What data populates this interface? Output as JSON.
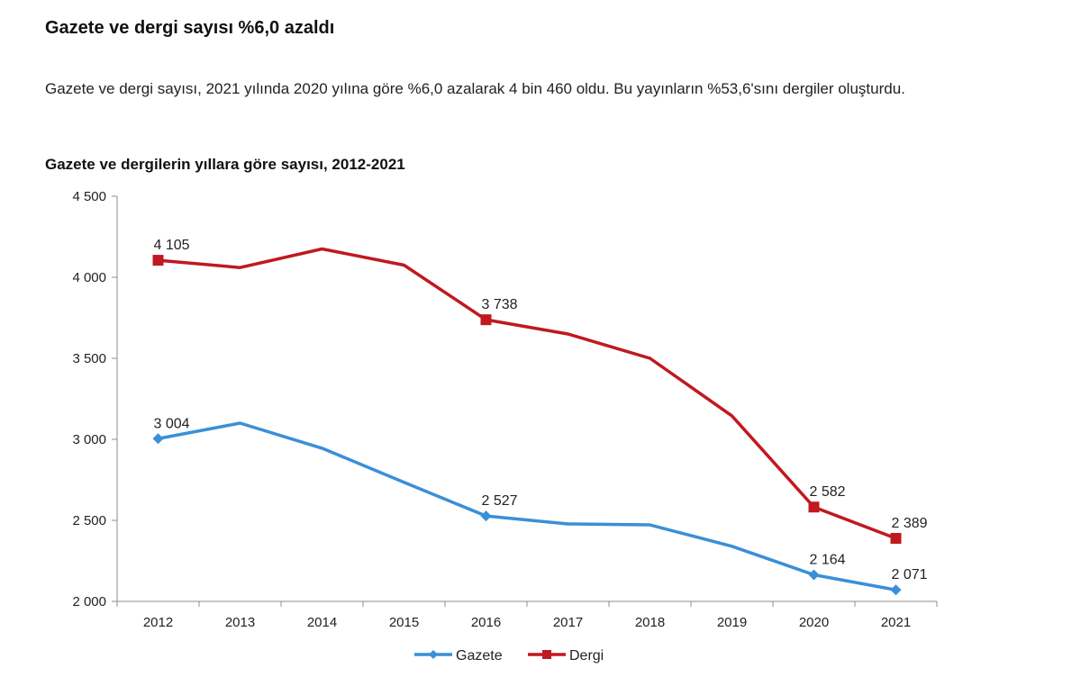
{
  "article": {
    "headline": "Gazete ve dergi sayısı %6,0 azaldı",
    "paragraph": "Gazete ve dergi sayısı, 2021 yılında 2020 yılına göre %6,0 azalarak 4 bin 460 oldu. Bu yayınların %53,6'sını dergiler oluşturdu."
  },
  "chart_data": {
    "type": "line",
    "title": "Gazete ve dergilerin yıllara göre sayısı, 2012-2021",
    "xlabel": "",
    "ylabel": "",
    "categories": [
      "2012",
      "2013",
      "2014",
      "2015",
      "2016",
      "2017",
      "2018",
      "2019",
      "2020",
      "2021"
    ],
    "ylim": [
      2000,
      4500
    ],
    "yticks": [
      2000,
      2500,
      3000,
      3500,
      4000,
      4500
    ],
    "ytick_labels": [
      "2 000",
      "2 500",
      "3 000",
      "3 500",
      "4 000",
      "4 500"
    ],
    "grid": false,
    "legend_position": "bottom-center",
    "series": [
      {
        "name": "Gazete",
        "color": "#3A8FD8",
        "marker": "diamond",
        "values": [
          3004,
          3100,
          2945,
          2735,
          2527,
          2478,
          2472,
          2340,
          2164,
          2071
        ],
        "labels": [
          {
            "index": 0,
            "text": "3 004"
          },
          {
            "index": 4,
            "text": "2 527"
          },
          {
            "index": 8,
            "text": "2 164"
          },
          {
            "index": 9,
            "text": "2 071"
          }
        ]
      },
      {
        "name": "Dergi",
        "color": "#C0191F",
        "marker": "square",
        "values": [
          4105,
          4060,
          4175,
          4075,
          3738,
          3650,
          3500,
          3145,
          2582,
          2389
        ],
        "labels": [
          {
            "index": 0,
            "text": "4 105"
          },
          {
            "index": 4,
            "text": "3 738"
          },
          {
            "index": 8,
            "text": "2 582"
          },
          {
            "index": 9,
            "text": "2 389"
          }
        ]
      }
    ]
  }
}
